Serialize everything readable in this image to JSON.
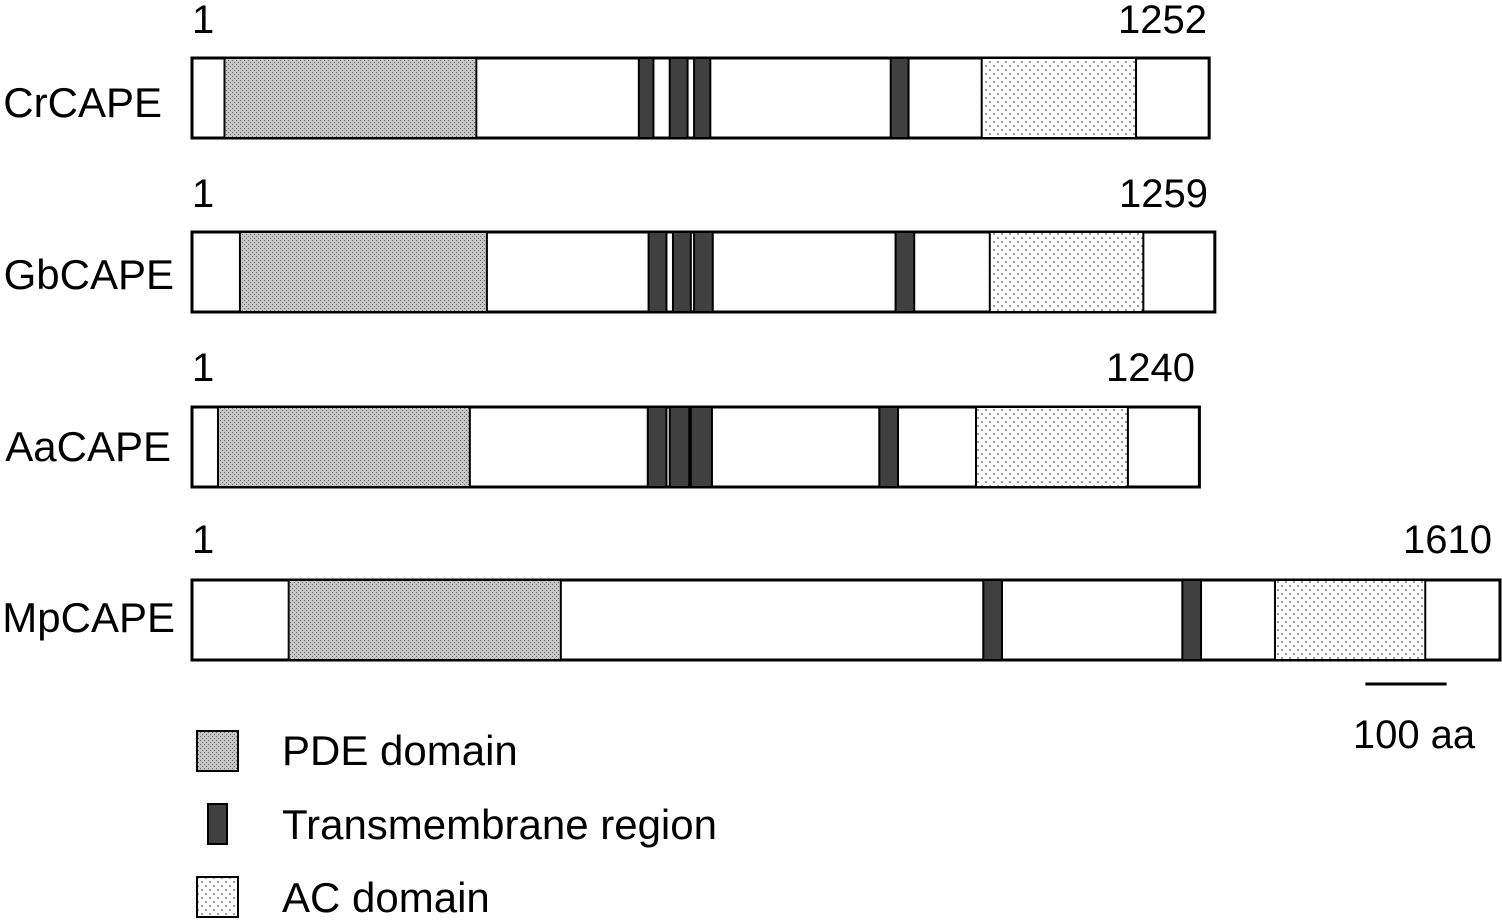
{
  "proteins": [
    {
      "name": "CrCAPE",
      "start": "1",
      "end": "1252",
      "pde": [
        40,
        350
      ],
      "tm": [
        [
          550,
          568
        ],
        [
          588,
          610
        ],
        [
          618,
          638
        ],
        [
          860,
          882
        ]
      ],
      "ac": [
        972,
        1162
      ]
    },
    {
      "name": "GbCAPE",
      "start": "1",
      "end": "1259",
      "pde": [
        59,
        363
      ],
      "tm": [
        [
          562,
          584
        ],
        [
          592,
          614
        ],
        [
          618,
          641
        ],
        [
          866,
          889
        ]
      ],
      "ac": [
        982,
        1171
      ]
    },
    {
      "name": "AaCAPE",
      "start": "1",
      "end": "1240",
      "pde": [
        32,
        342
      ],
      "tm": [
        [
          561,
          584
        ],
        [
          588,
          612
        ],
        [
          614,
          640
        ],
        [
          846,
          869
        ]
      ],
      "ac": [
        965,
        1152
      ]
    },
    {
      "name": "MpCAPE",
      "start": "1",
      "end": "1610",
      "pde": [
        119,
        454
      ],
      "tm": [
        [
          974,
          997
        ],
        [
          1219,
          1242
        ]
      ],
      "ac": [
        1333,
        1518
      ]
    }
  ],
  "legend": [
    {
      "key": "pde",
      "label": "PDE domain"
    },
    {
      "key": "tm",
      "label": "Transmembrane region"
    },
    {
      "key": "ac",
      "label": "AC domain"
    }
  ],
  "scale_bar": {
    "length_aa": 100,
    "label": "100 aa"
  },
  "colors": {
    "outline": "#000000",
    "tm_fill": "#404040",
    "pde_fill": "#b8b8b8",
    "ac_fill": "#f4f4f4",
    "background": "#ffffff"
  }
}
